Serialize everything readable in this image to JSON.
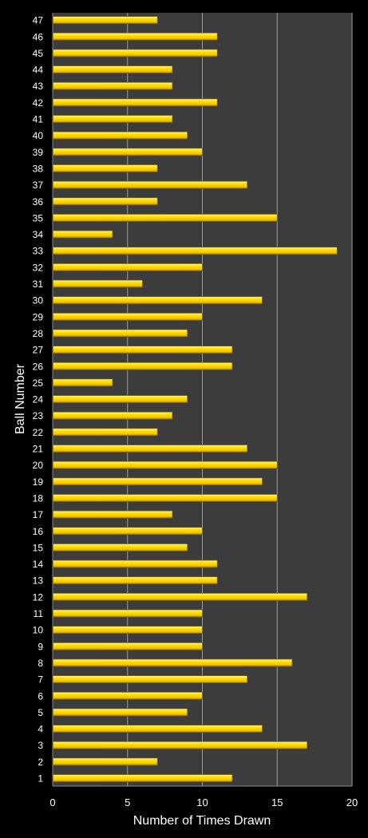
{
  "chart_data": {
    "type": "bar",
    "orientation": "horizontal",
    "title": "",
    "xlabel": "Number of Times Drawn",
    "ylabel": "Ball Number",
    "xlim": [
      0,
      20
    ],
    "xticks": [
      0,
      5,
      10,
      15,
      20
    ],
    "grid": true,
    "legend": "none",
    "colors": {
      "background": "#000000",
      "plot_area": "#3c3c3c",
      "gridline": "#9a9a9a",
      "bar_fill": "#ffd800",
      "bar_edge": "#7a6200",
      "text": "#ffffff"
    },
    "categories": [
      "1",
      "2",
      "3",
      "4",
      "5",
      "6",
      "7",
      "8",
      "9",
      "10",
      "11",
      "12",
      "13",
      "14",
      "15",
      "16",
      "17",
      "18",
      "19",
      "20",
      "21",
      "22",
      "23",
      "24",
      "25",
      "26",
      "27",
      "28",
      "29",
      "30",
      "31",
      "32",
      "33",
      "34",
      "35",
      "36",
      "37",
      "38",
      "39",
      "40",
      "41",
      "42",
      "43",
      "44",
      "45",
      "46",
      "47"
    ],
    "values": [
      12,
      7,
      17,
      14,
      9,
      10,
      13,
      16,
      10,
      10,
      10,
      17,
      11,
      11,
      9,
      10,
      8,
      15,
      14,
      15,
      13,
      7,
      8,
      9,
      4,
      12,
      12,
      9,
      10,
      14,
      6,
      10,
      19,
      4,
      15,
      7,
      13,
      7,
      10,
      9,
      8,
      11,
      8,
      8,
      11,
      11,
      7
    ]
  }
}
